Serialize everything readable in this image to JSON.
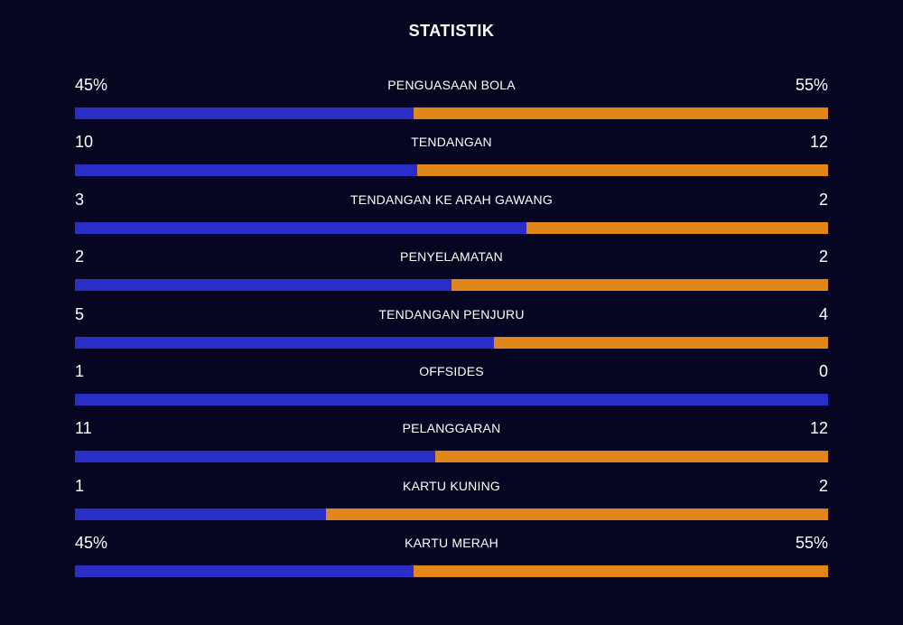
{
  "title": "STATISTIK",
  "colors": {
    "home": "#2b2ec6",
    "away": "#e0861a",
    "background": "#070622"
  },
  "stats": [
    {
      "label": "PENGUASAAN BOLA",
      "home": "45%",
      "away": "55%",
      "home_fraction": 0.45
    },
    {
      "label": "TENDANGAN",
      "home": "10",
      "away": "12",
      "home_fraction": 0.455
    },
    {
      "label": "TENDANGAN KE ARAH GAWANG",
      "home": "3",
      "away": "2",
      "home_fraction": 0.6
    },
    {
      "label": "PENYELAMATAN",
      "home": "2",
      "away": "2",
      "home_fraction": 0.5
    },
    {
      "label": "TENDANGAN PENJURU",
      "home": "5",
      "away": "4",
      "home_fraction": 0.556
    },
    {
      "label": "OFFSIDES",
      "home": "1",
      "away": "0",
      "home_fraction": 1.0
    },
    {
      "label": "PELANGGARAN",
      "home": "11",
      "away": "12",
      "home_fraction": 0.478
    },
    {
      "label": "KARTU KUNING",
      "home": "1",
      "away": "2",
      "home_fraction": 0.333
    },
    {
      "label": "KARTU MERAH",
      "home": "45%",
      "away": "55%",
      "home_fraction": 0.45
    }
  ]
}
